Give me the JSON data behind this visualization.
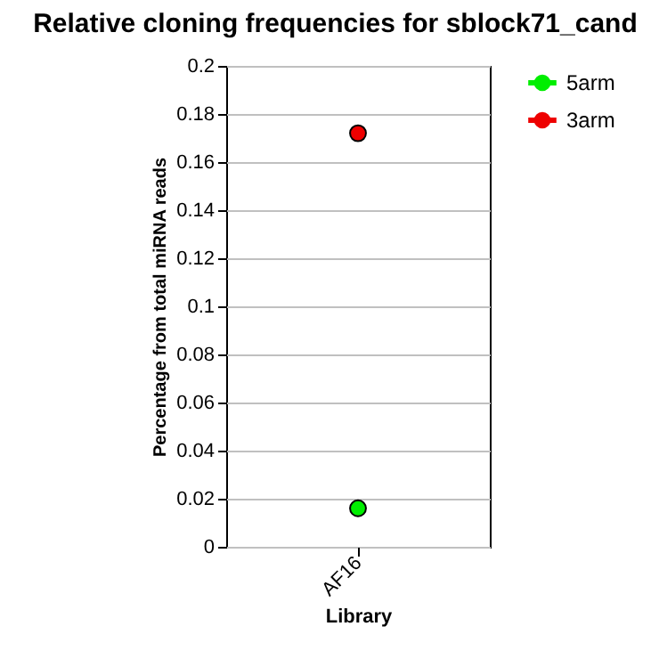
{
  "chart_data": {
    "type": "line",
    "title": "Relative cloning frequencies for sblock71_cand",
    "xlabel": "Library",
    "ylabel": "Percentage from total miRNA reads",
    "categories": [
      "AF16"
    ],
    "series": [
      {
        "name": "5arm",
        "color": "#00ee00",
        "values": [
          0.016
        ]
      },
      {
        "name": "3arm",
        "color": "#ee0000",
        "values": [
          0.172
        ]
      }
    ],
    "ylim": [
      0,
      0.2
    ],
    "yticks": [
      0,
      0.02,
      0.04,
      0.06,
      0.08,
      0.1,
      0.12,
      0.14,
      0.16,
      0.18,
      0.2
    ],
    "grid": "y",
    "legend": "top right",
    "marker": "circle",
    "line_style": "solid"
  }
}
